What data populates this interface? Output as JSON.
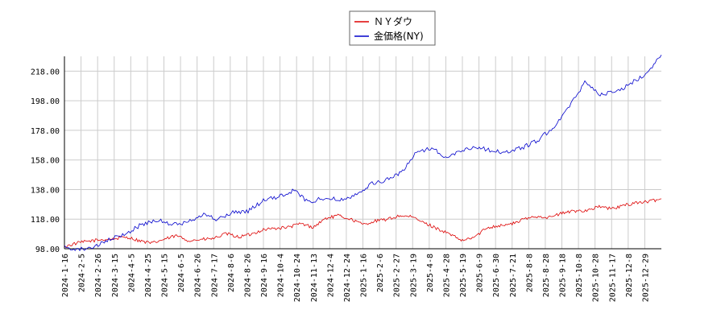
{
  "chart_data": {
    "type": "line",
    "ylim": [
      98,
      228
    ],
    "y_ticks": [
      "98.00",
      "118.00",
      "138.00",
      "158.00",
      "178.00",
      "198.00",
      "218.00"
    ],
    "x_ticks": [
      "2024-1-16",
      "2024-2-5",
      "2024-2-26",
      "2024-3-15",
      "2024-4-5",
      "2024-4-25",
      "2024-5-15",
      "2024-6-5",
      "2024-6-26",
      "2024-7-17",
      "2024-8-6",
      "2024-8-26",
      "2024-9-16",
      "2024-10-4",
      "2024-10-24",
      "2024-11-13",
      "2024-12-4",
      "2024-12-24",
      "2025-1-16",
      "2025-2-6",
      "2025-2-27",
      "2025-3-19",
      "2025-4-8",
      "2025-4-28",
      "2025-5-19",
      "2025-6-9",
      "2025-6-30",
      "2025-7-21",
      "2025-8-8",
      "2025-8-28",
      "2025-9-18",
      "2025-10-8",
      "2025-10-28",
      "2025-11-17",
      "2025-12-8",
      "2025-12-29"
    ],
    "grid": true,
    "legend_position": "top-center",
    "series": [
      {
        "name": "ＮＹダウ",
        "color": "#dd0000",
        "values": [
          99.5,
          101.8,
          103.2,
          104.1,
          104.7,
          106.0,
          103.5,
          101.6,
          104.3,
          106.8,
          103.5,
          104.2,
          104.9,
          108.2,
          105.9,
          107.8,
          111.0,
          111.8,
          112.5,
          115.0,
          112.5,
          118.5,
          120.4,
          118.1,
          114.4,
          116.7,
          117.9,
          120.4,
          119.3,
          115.2,
          111.6,
          107.7,
          103.3,
          106.0,
          112.4,
          113.7,
          114.8,
          118.1,
          120.0,
          119.2,
          122.0,
          123.5,
          124.0,
          126.5,
          124.9,
          127.3,
          129.2,
          129.8,
          131.8
        ]
      },
      {
        "name": "金価格(NY)",
        "color": "#0000cc",
        "values": [
          99.0,
          97.6,
          99.4,
          104.2,
          108.1,
          114.2,
          117.6,
          114.2,
          115.6,
          121.5,
          117.6,
          122.5,
          123.5,
          130.5,
          133.0,
          137.5,
          129.2,
          132.7,
          131.0,
          134.6,
          141.6,
          144.4,
          149.3,
          163.3,
          166.3,
          159.2,
          165.1,
          166.7,
          164.0,
          163.3,
          166.7,
          171.6,
          181.0,
          194.1,
          210.5,
          202.7,
          203.5,
          209.6,
          216.6,
          229.0
        ]
      }
    ]
  }
}
